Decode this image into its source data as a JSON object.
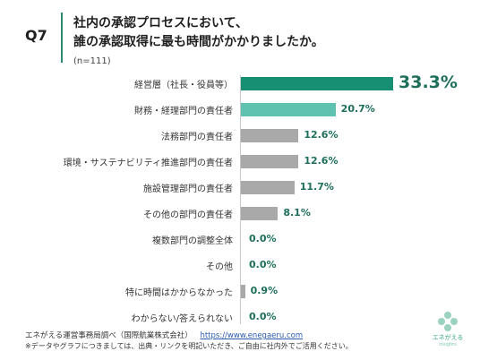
{
  "header": {
    "question_number": "Q7",
    "title_line1": "社内の承認プロセスにおいて、",
    "title_line2": "誰の承認取得に最も時間がかかりましたか。",
    "sample_size": "(n=111)"
  },
  "colors": {
    "accent": "#2a8a72",
    "top_bar": "#178f73",
    "second_bar": "#5fc1b0",
    "other_bar": "#a9a9a9",
    "value_text": "#1e6f5a"
  },
  "chart_data": {
    "type": "bar",
    "orientation": "horizontal",
    "title": "",
    "xlabel": "",
    "ylabel": "",
    "xlim": [
      0,
      35
    ],
    "grid": false,
    "legend": "none",
    "unit": "%",
    "categories": [
      "経営層（社長・役員等）",
      "財務・経理部門の責任者",
      "法務部門の責任者",
      "環境・サステナビリティ推進部門の責任者",
      "施設管理部門の責任者",
      "その他の部門の責任者",
      "複数部門の調整全体",
      "その他",
      "特に時間はかからなかった",
      "わからない/答えられない"
    ],
    "values": [
      33.3,
      20.7,
      12.6,
      12.6,
      11.7,
      8.1,
      0.0,
      0.0,
      0.9,
      0.0
    ],
    "value_labels": [
      "33.3%",
      "20.7%",
      "12.6%",
      "12.6%",
      "11.7%",
      "8.1%",
      "0.0%",
      "0.0%",
      "0.9%",
      "0.0%"
    ]
  },
  "footer": {
    "source": "エネがえる運営事務局調べ（国際航業株式会社）",
    "url": "https://www.enegaeru.com",
    "note": "※データやグラフにつきましては、出典・リンクを明記いただき、ご自由に社内外でご活用ください。"
  },
  "logo": {
    "brand": "エネがえる",
    "sub": "insights"
  }
}
